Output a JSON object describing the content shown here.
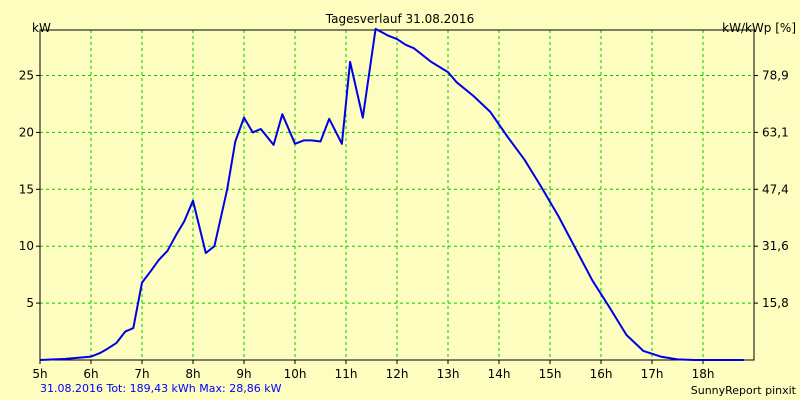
{
  "chart_data": {
    "type": "line",
    "title": "Tagesverlauf 31.08.2016",
    "ylabel_left": "kW",
    "ylabel_right": "kW/kWp [%]",
    "xlim": [
      5.0,
      19.0
    ],
    "ylim": [
      0,
      29
    ],
    "grid": true,
    "line_color": "#0000e6",
    "grid_color": "#00cc00",
    "background": "#fdfdc0",
    "x_ticks": [
      {
        "value": 5,
        "label": "5h"
      },
      {
        "value": 6,
        "label": "6h"
      },
      {
        "value": 7,
        "label": "7h"
      },
      {
        "value": 8,
        "label": "8h"
      },
      {
        "value": 9,
        "label": "9h"
      },
      {
        "value": 10,
        "label": "10h"
      },
      {
        "value": 11,
        "label": "11h"
      },
      {
        "value": 12,
        "label": "12h"
      },
      {
        "value": 13,
        "label": "13h"
      },
      {
        "value": 14,
        "label": "14h"
      },
      {
        "value": 15,
        "label": "15h"
      },
      {
        "value": 16,
        "label": "16h"
      },
      {
        "value": 17,
        "label": "17h"
      },
      {
        "value": 18,
        "label": "18h"
      }
    ],
    "y_ticks_left": [
      {
        "value": 5,
        "label": "5"
      },
      {
        "value": 10,
        "label": "10"
      },
      {
        "value": 15,
        "label": "15"
      },
      {
        "value": 20,
        "label": "20"
      },
      {
        "value": 25,
        "label": "25"
      }
    ],
    "y_ticks_right": [
      {
        "value": 5,
        "label": "15,8"
      },
      {
        "value": 10,
        "label": "31,6"
      },
      {
        "value": 15,
        "label": "47,4"
      },
      {
        "value": 20,
        "label": "63,1"
      },
      {
        "value": 25,
        "label": "78,9"
      }
    ],
    "series": [
      {
        "points": [
          [
            5.0,
            0.0
          ],
          [
            5.5,
            0.1
          ],
          [
            6.0,
            0.3
          ],
          [
            6.17,
            0.6
          ],
          [
            6.33,
            1.0
          ],
          [
            6.5,
            1.5
          ],
          [
            6.67,
            2.5
          ],
          [
            6.83,
            2.8
          ],
          [
            7.0,
            6.8
          ],
          [
            7.17,
            7.8
          ],
          [
            7.33,
            8.8
          ],
          [
            7.5,
            9.6
          ],
          [
            7.67,
            11.0
          ],
          [
            7.83,
            12.2
          ],
          [
            8.0,
            14.0
          ],
          [
            8.25,
            9.4
          ],
          [
            8.42,
            10.0
          ],
          [
            8.67,
            15.0
          ],
          [
            8.83,
            19.2
          ],
          [
            9.0,
            21.3
          ],
          [
            9.17,
            20.0
          ],
          [
            9.33,
            20.3
          ],
          [
            9.58,
            18.9
          ],
          [
            9.75,
            21.6
          ],
          [
            10.0,
            19.0
          ],
          [
            10.17,
            19.3
          ],
          [
            10.33,
            19.3
          ],
          [
            10.5,
            19.2
          ],
          [
            10.67,
            21.2
          ],
          [
            10.92,
            19.0
          ],
          [
            11.08,
            26.2
          ],
          [
            11.33,
            21.3
          ],
          [
            11.58,
            29.1
          ],
          [
            11.83,
            28.5
          ],
          [
            12.0,
            28.2
          ],
          [
            12.17,
            27.7
          ],
          [
            12.33,
            27.4
          ],
          [
            12.67,
            26.2
          ],
          [
            13.0,
            25.3
          ],
          [
            13.17,
            24.4
          ],
          [
            13.5,
            23.2
          ],
          [
            13.83,
            21.8
          ],
          [
            14.17,
            19.6
          ],
          [
            14.5,
            17.6
          ],
          [
            14.83,
            15.2
          ],
          [
            15.17,
            12.6
          ],
          [
            15.5,
            9.8
          ],
          [
            15.83,
            7.0
          ],
          [
            16.17,
            4.6
          ],
          [
            16.5,
            2.2
          ],
          [
            16.83,
            0.8
          ],
          [
            17.17,
            0.3
          ],
          [
            17.5,
            0.05
          ],
          [
            17.83,
            0.0
          ],
          [
            18.8,
            0.0
          ]
        ]
      }
    ]
  },
  "footer": {
    "left": "31.08.2016 Tot: 189,43 kWh Max: 28,86 kW",
    "right": "SunnyReport pinxit"
  }
}
